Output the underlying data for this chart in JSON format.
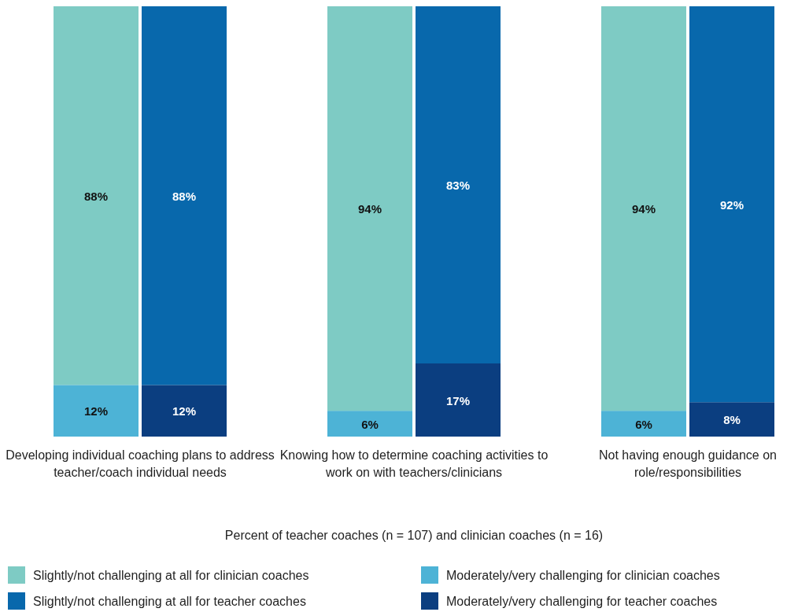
{
  "chart_data": [
    {
      "type": "bar",
      "stacked": true,
      "xlabel": "Developing individual coaching plans to address teacher/coach individual needs",
      "categories": [
        null,
        null
      ],
      "series": [
        {
          "color": "#4db3d6",
          "values": [
            12,
            null
          ],
          "value_labels": [
            "12%",
            null
          ]
        },
        {
          "color": "#0b3e80",
          "values": [
            null,
            12
          ],
          "value_labels": [
            null,
            "12%"
          ]
        },
        {
          "color": "#7ecbc4",
          "values": [
            88,
            null
          ],
          "value_labels": [
            "88%",
            null
          ]
        },
        {
          "color": "#0868ac",
          "values": [
            null,
            88
          ],
          "value_labels": [
            null,
            "88%"
          ]
        }
      ]
    },
    {
      "type": "bar",
      "stacked": true,
      "legend": "bottom",
      "xlabel": "Knowing how to determine coaching activities to work on with teachers/clinicians",
      "categories": [
        null,
        null
      ],
      "annotations": [
        "Percent of teacher coaches (n = 107) and clinician coaches (n = 16)"
      ],
      "series": [
        {
          "name": "Moderately/very challenging for clinician coaches",
          "color": "#4db3d6",
          "values": [
            6,
            null
          ],
          "value_labels": [
            "6%",
            null
          ]
        },
        {
          "name": "Moderately/very challenging for teacher coaches",
          "color": "#0b3e80",
          "values": [
            null,
            17
          ],
          "value_labels": [
            null,
            "17%"
          ]
        },
        {
          "name": "Slightly/not challenging at all for clinician coaches",
          "color": "#7ecbc4",
          "values": [
            94,
            null
          ],
          "value_labels": [
            "94%",
            null
          ]
        },
        {
          "name": "Slightly/not challenging at all for teacher coaches",
          "color": "#0868ac",
          "values": [
            null,
            83
          ],
          "value_labels": [
            null,
            "83%"
          ]
        }
      ]
    },
    {
      "type": "bar",
      "stacked": true,
      "xlabel": "Not having enough guidance on role/responsibilities",
      "categories": [
        null,
        null
      ],
      "series": [
        {
          "color": "#4db3d6",
          "values": [
            6,
            null
          ],
          "value_labels": [
            "6%",
            null
          ]
        },
        {
          "color": "#0b3e80",
          "values": [
            null,
            8
          ],
          "value_labels": [
            null,
            "8%"
          ]
        },
        {
          "color": "#7ecbc4",
          "values": [
            94,
            null
          ],
          "value_labels": [
            "94%",
            null
          ]
        },
        {
          "color": "#0868ac",
          "values": [
            null,
            92
          ],
          "value_labels": [
            null,
            "92%"
          ]
        }
      ]
    }
  ]
}
